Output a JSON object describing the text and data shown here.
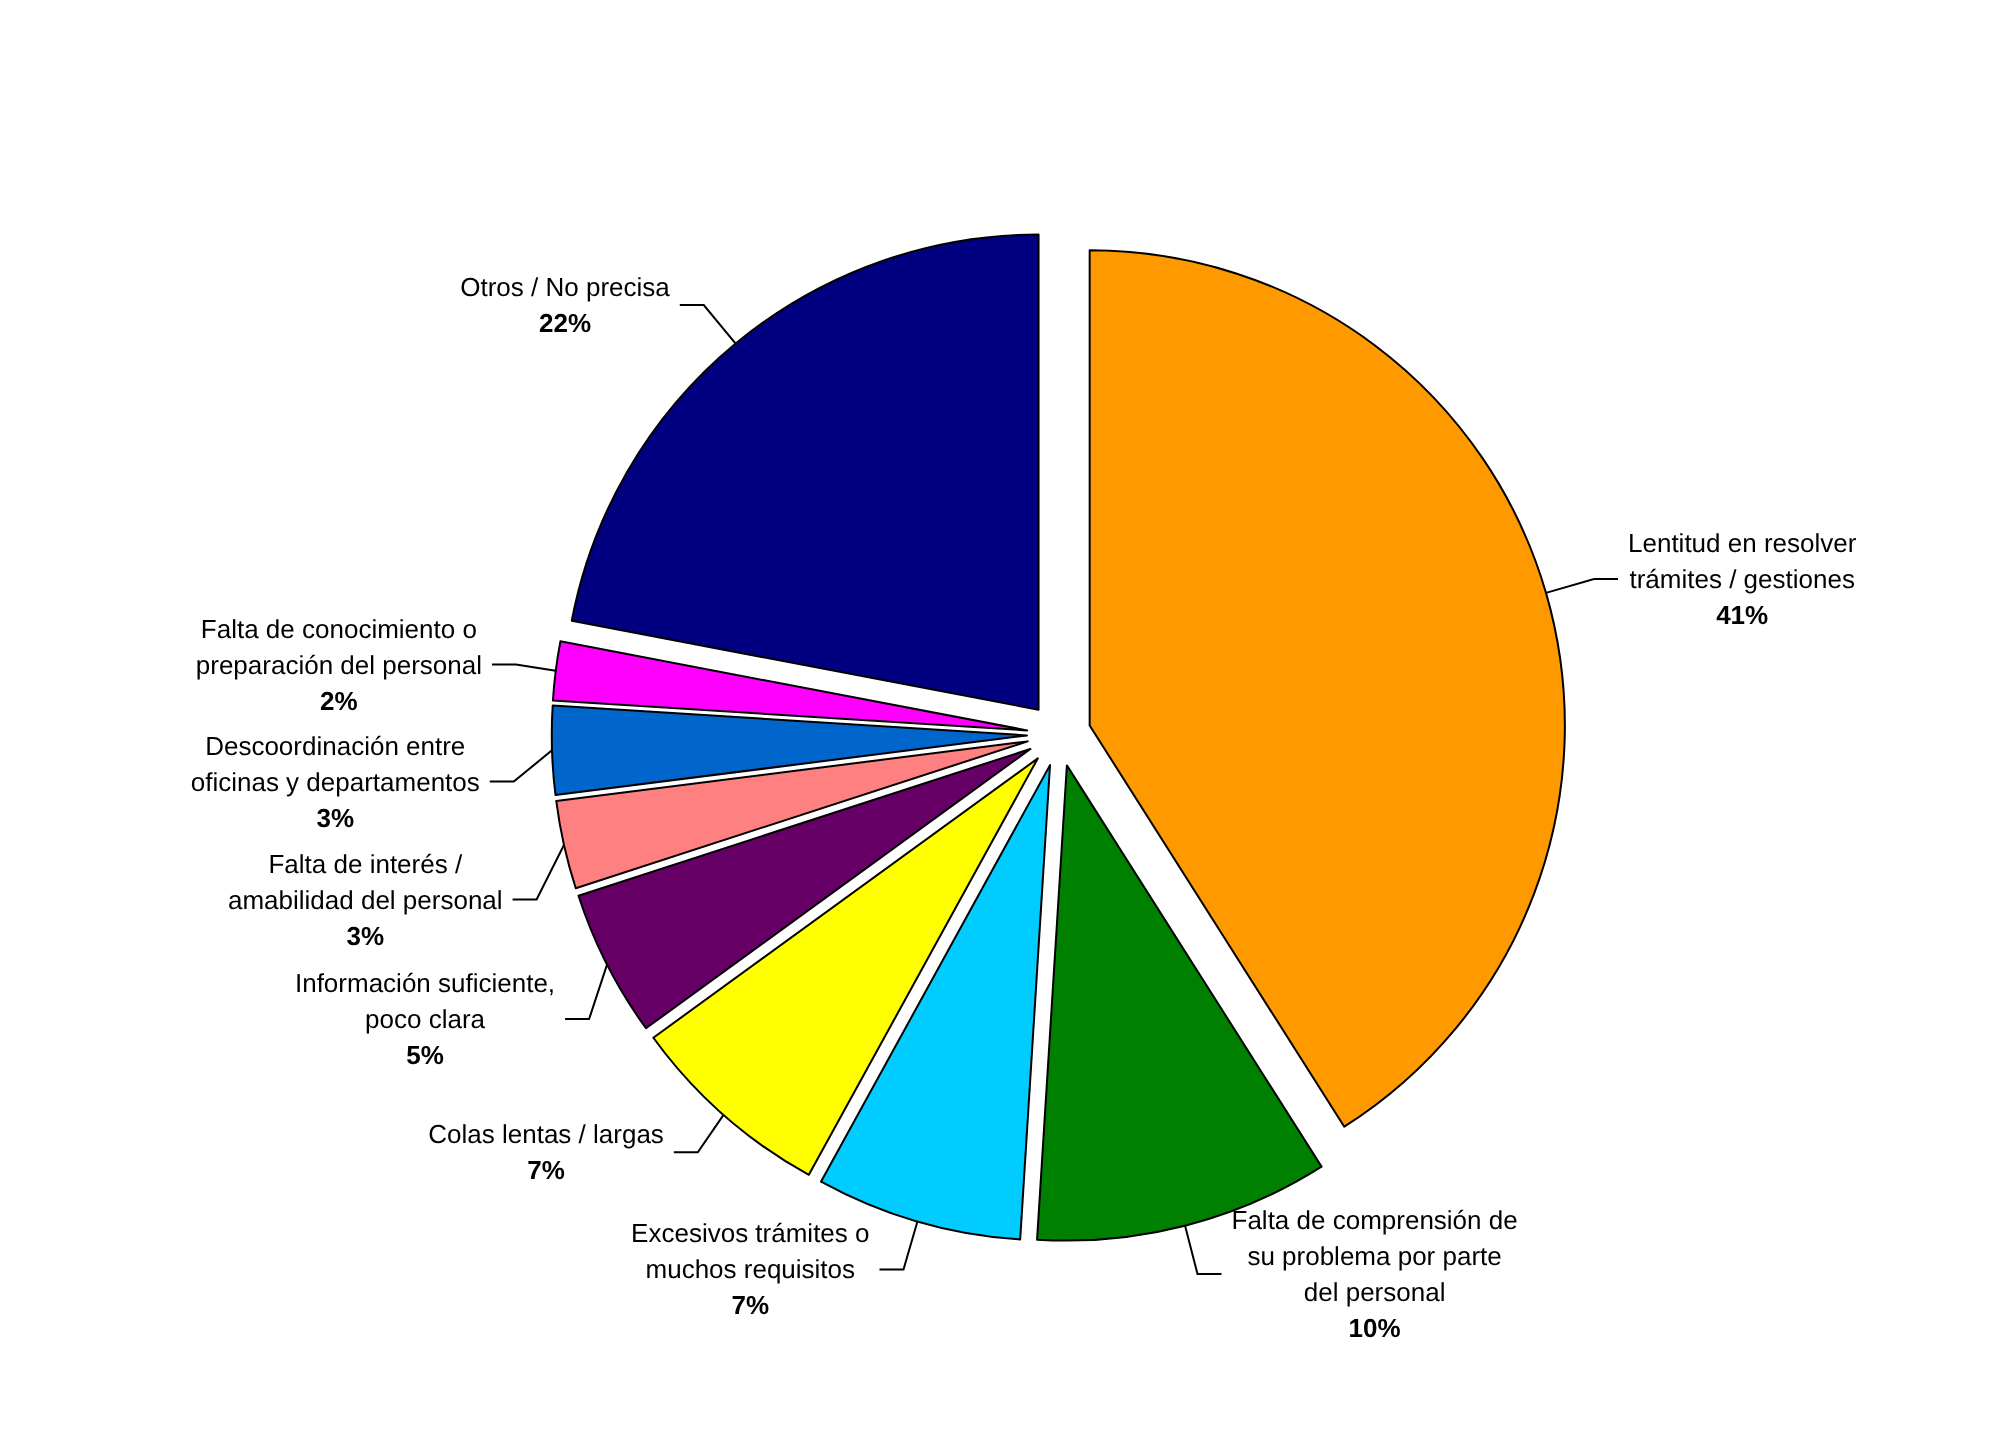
{
  "chart_data": {
    "type": "pie",
    "categories": [
      "Lentitud en resolver trámites / gestiones",
      "Falta de comprensión de su problema por parte del personal",
      "Excesivos trámites o muchos requisitos",
      "Colas lentas / largas",
      "Información suficiente, poco clara",
      "Falta de interés / amabilidad del personal",
      "Descoordinación entre oficinas y departamentos",
      "Falta de conocimiento o preparación del personal",
      "Otros / No precisa"
    ],
    "values": [
      41,
      10,
      7,
      7,
      5,
      3,
      3,
      2,
      22
    ],
    "colors": [
      "#ff9900",
      "#008000",
      "#00ccff",
      "#ffff00",
      "#660066",
      "#ff8080",
      "#0066cc",
      "#ff00ff",
      "#000080"
    ],
    "value_labels": [
      "41%",
      "10%",
      "7%",
      "7%",
      "5%",
      "3%",
      "3%",
      "2%",
      "22%"
    ]
  }
}
